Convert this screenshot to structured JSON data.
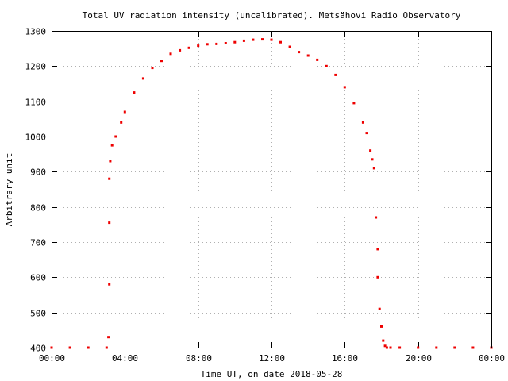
{
  "chart_data": {
    "type": "scatter",
    "title": "Total UV radiation intensity (uncalibrated). Metsähovi Radio Observatory",
    "xlabel": "Time UT, on date 2018-05-28",
    "ylabel": "Arbitrary unit",
    "xlim": [
      0,
      24
    ],
    "ylim": [
      400,
      1300
    ],
    "x_tick_labels": [
      "00:00",
      "04:00",
      "08:00",
      "12:00",
      "16:00",
      "20:00",
      "00:00"
    ],
    "y_tick_labels": [
      "400",
      "500",
      "600",
      "700",
      "800",
      "900",
      "1000",
      "1100",
      "1200",
      "1300"
    ],
    "grid": true,
    "legend": "none",
    "marker_color": "#ee0000",
    "series": [
      {
        "x": [
          0.0,
          1.0,
          2.0,
          3.0,
          3.1,
          3.15,
          3.15,
          3.15,
          3.2,
          3.3,
          3.5,
          3.8,
          4.0,
          4.5,
          5.0,
          5.5,
          6.0,
          6.5,
          7.0,
          7.5,
          8.0,
          8.5,
          9.0,
          9.5,
          10.0,
          10.5,
          11.0,
          11.5,
          12.0,
          12.5,
          13.0,
          13.5,
          14.0,
          14.5,
          15.0,
          15.5,
          16.0,
          16.5,
          17.0,
          17.2,
          17.4,
          17.5,
          17.6,
          17.7,
          17.8,
          17.8,
          17.9,
          18.0,
          18.1,
          18.2,
          18.3,
          18.5,
          19.0,
          20.0,
          21.0,
          22.0,
          23.0,
          24.0
        ],
        "y": [
          400,
          400,
          400,
          400,
          430,
          580,
          755,
          880,
          930,
          975,
          1000,
          1040,
          1070,
          1125,
          1165,
          1195,
          1215,
          1235,
          1245,
          1252,
          1258,
          1262,
          1263,
          1265,
          1268,
          1272,
          1275,
          1276,
          1275,
          1268,
          1255,
          1240,
          1230,
          1218,
          1200,
          1175,
          1140,
          1095,
          1040,
          1010,
          960,
          935,
          910,
          770,
          680,
          600,
          510,
          460,
          420,
          405,
          400,
          400,
          400,
          400,
          400,
          400,
          400,
          400
        ]
      }
    ]
  }
}
